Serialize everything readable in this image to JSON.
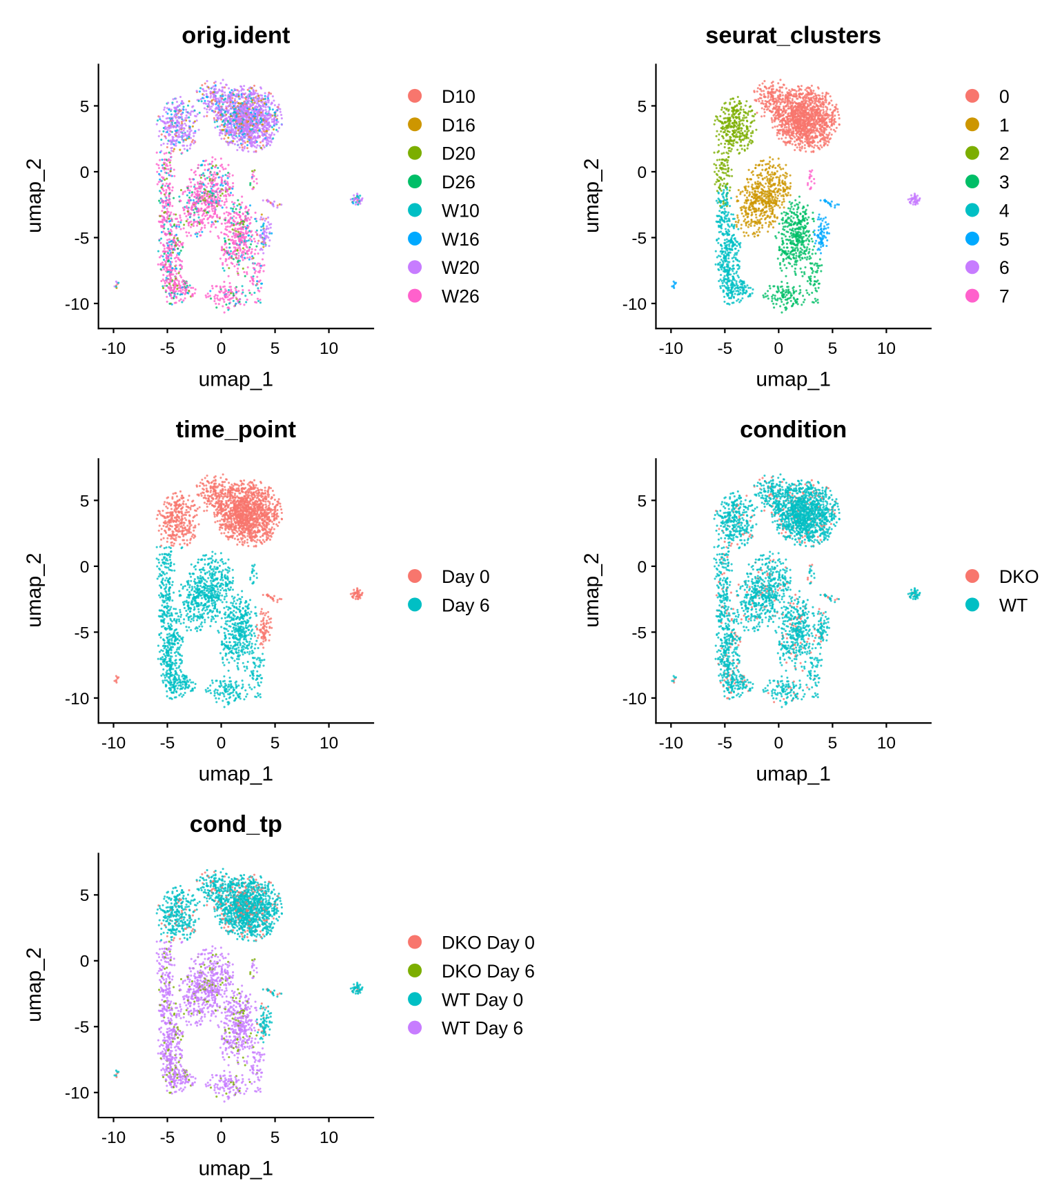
{
  "chart_data": [
    {
      "type": "scatter",
      "title": "orig.ident",
      "xlabel": "umap_1",
      "ylabel": "umap_2",
      "xlim": [
        -11.4,
        14.2
      ],
      "ylim": [
        -11.9,
        8.2
      ],
      "xticks": [
        "-10",
        "-5",
        "0",
        "5",
        "10"
      ],
      "yticks": [
        "5",
        "0",
        "-5",
        "-10"
      ],
      "grid": false,
      "legend": "right",
      "categories": [
        "D10",
        "D16",
        "D20",
        "D26",
        "W10",
        "W16",
        "W20",
        "W26"
      ],
      "colors": [
        "#F8766D",
        "#CD9600",
        "#7CAE00",
        "#00BE67",
        "#00BFC4",
        "#00A9FF",
        "#C77CFF",
        "#FF61CC"
      ]
    },
    {
      "type": "scatter",
      "title": "seurat_clusters",
      "xlabel": "umap_1",
      "ylabel": "umap_2",
      "xlim": [
        -11.4,
        14.2
      ],
      "ylim": [
        -11.9,
        8.2
      ],
      "xticks": [
        "-10",
        "-5",
        "0",
        "5",
        "10"
      ],
      "yticks": [
        "5",
        "0",
        "-5",
        "-10"
      ],
      "grid": false,
      "legend": "right",
      "categories": [
        "0",
        "1",
        "2",
        "3",
        "4",
        "5",
        "6",
        "7"
      ],
      "colors": [
        "#F8766D",
        "#CD9600",
        "#7CAE00",
        "#00BE67",
        "#00BFC4",
        "#00A9FF",
        "#C77CFF",
        "#FF61CC"
      ]
    },
    {
      "type": "scatter",
      "title": "time_point",
      "xlabel": "umap_1",
      "ylabel": "umap_2",
      "xlim": [
        -11.4,
        14.2
      ],
      "ylim": [
        -11.9,
        8.2
      ],
      "xticks": [
        "-10",
        "-5",
        "0",
        "5",
        "10"
      ],
      "yticks": [
        "5",
        "0",
        "-5",
        "-10"
      ],
      "grid": false,
      "legend": "right",
      "categories": [
        "Day 0",
        "Day 6"
      ],
      "colors": [
        "#F8766D",
        "#00BFC4"
      ]
    },
    {
      "type": "scatter",
      "title": "condition",
      "xlabel": "umap_1",
      "ylabel": "umap_2",
      "xlim": [
        -11.4,
        14.2
      ],
      "ylim": [
        -11.9,
        8.2
      ],
      "xticks": [
        "-10",
        "-5",
        "0",
        "5",
        "10"
      ],
      "yticks": [
        "5",
        "0",
        "-5",
        "-10"
      ],
      "grid": false,
      "legend": "right",
      "categories": [
        "DKO",
        "WT"
      ],
      "colors": [
        "#F8766D",
        "#00BFC4"
      ]
    },
    {
      "type": "scatter",
      "title": "cond_tp",
      "xlabel": "umap_1",
      "ylabel": "umap_2",
      "xlim": [
        -11.4,
        14.2
      ],
      "ylim": [
        -11.9,
        8.2
      ],
      "xticks": [
        "-10",
        "-5",
        "0",
        "5",
        "10"
      ],
      "yticks": [
        "5",
        "0",
        "-5",
        "-10"
      ],
      "grid": false,
      "legend": "right",
      "categories": [
        "DKO Day 0",
        "DKO Day 6",
        "WT Day 0",
        "WT Day 6"
      ],
      "colors": [
        "#F8766D",
        "#7CAE00",
        "#00BFC4",
        "#C77CFF"
      ]
    }
  ]
}
